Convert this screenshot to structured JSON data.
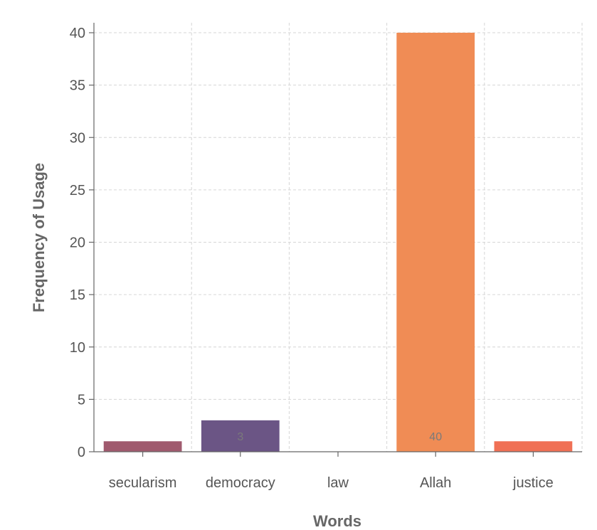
{
  "chart_data": {
    "type": "bar",
    "categories": [
      "secularism",
      "democracy",
      "law",
      "Allah",
      "justice"
    ],
    "values": [
      1,
      3,
      0,
      40,
      1
    ],
    "colors": [
      "#a05a6e",
      "#6b5585",
      "#b86a7a",
      "#f08c55",
      "#f07055"
    ],
    "data_labels": [
      "",
      "3",
      "",
      "40",
      ""
    ],
    "title": "",
    "xlabel": "Words",
    "ylabel": "Frequency of Usage",
    "ylim": [
      0,
      40
    ],
    "yticks": [
      0,
      5,
      10,
      15,
      20,
      25,
      30,
      35,
      40
    ],
    "grid": true
  }
}
